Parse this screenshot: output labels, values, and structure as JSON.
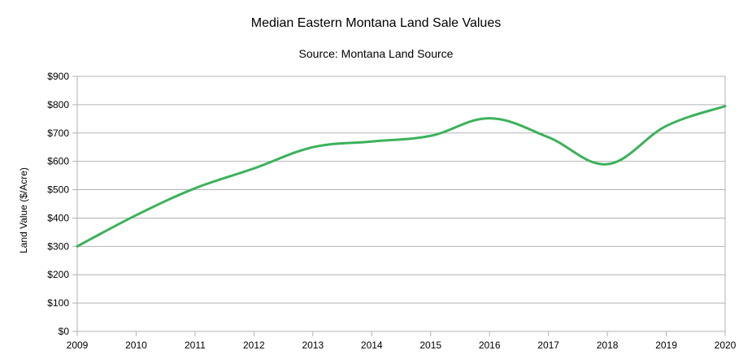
{
  "chart_data": {
    "type": "line",
    "title": "Median Eastern Montana Land Sale Values",
    "subtitle": "Source: Montana Land Source",
    "xlabel": "",
    "ylabel": "Land Value ($/Acre)",
    "x": [
      2009,
      2010,
      2011,
      2012,
      2013,
      2014,
      2015,
      2016,
      2017,
      2018,
      2019,
      2020
    ],
    "x_tick_labels": [
      "2009",
      "2010",
      "2011",
      "2012",
      "2013",
      "2014",
      "2015",
      "2016",
      "2017",
      "2018",
      "2019",
      "2020"
    ],
    "y_tick_labels": [
      "$0",
      "$100",
      "$200",
      "$300",
      "$400",
      "$500",
      "$600",
      "$700",
      "$800",
      "$900"
    ],
    "xlim": [
      2009,
      2020
    ],
    "ylim": [
      0,
      900
    ],
    "grid": true,
    "series": [
      {
        "color": "#3cb15b",
        "values": [
          300,
          410,
          505,
          575,
          650,
          670,
          690,
          752,
          685,
          590,
          725,
          795
        ]
      }
    ]
  }
}
